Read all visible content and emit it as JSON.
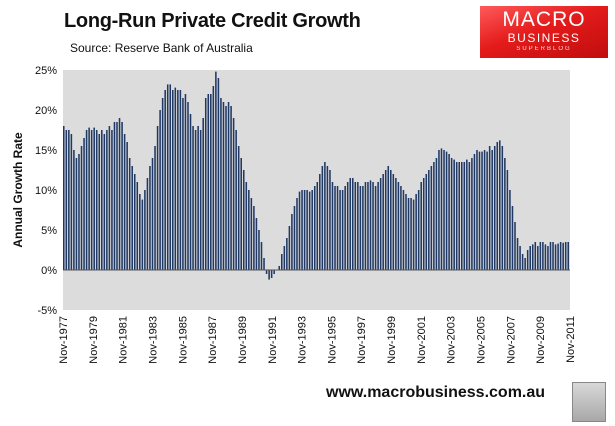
{
  "header": {
    "title": "Long-Run Private Credit Growth",
    "source": "Source: Reserve Bank of Australia"
  },
  "logo": {
    "line1": "MACRO",
    "line2": "BUSINESS",
    "line3": "SUPERBLOG",
    "color": "#e41b1b"
  },
  "footer": {
    "website": "www.macrobusiness.com.au",
    "mascot": "wolf-icon"
  },
  "colors": {
    "bars": "#1f3864",
    "plot_background": "#dcdcdc"
  },
  "chart_data": {
    "type": "bar",
    "title": "Long-Run Private Credit Growth",
    "ylabel": "Annual Growth Rate",
    "xlabel": "",
    "ylim": [
      -5,
      25
    ],
    "yticks": [
      "-5%",
      "0%",
      "5%",
      "10%",
      "15%",
      "20%",
      "25%"
    ],
    "xticks": [
      "Nov-1977",
      "Nov-1979",
      "Nov-1981",
      "Nov-1983",
      "Nov-1985",
      "Nov-1987",
      "Nov-1989",
      "Nov-1991",
      "Nov-1993",
      "Nov-1995",
      "Nov-1997",
      "Nov-1999",
      "Nov-2001",
      "Nov-2003",
      "Nov-2005",
      "Nov-2007",
      "Nov-2009",
      "Nov-2011"
    ],
    "grid": false,
    "legend": "none",
    "series": [
      {
        "values_by_year": {
          "1977": [
            18,
            17.5
          ],
          "1978": [
            17.5,
            17,
            15,
            14,
            14.5,
            15.5
          ],
          "1979": [
            16.5,
            17.5,
            17.8,
            17.5,
            17.8,
            17.5
          ],
          "1980": [
            17,
            17.5,
            17,
            17.5,
            18,
            17.5
          ],
          "1981": [
            18.5,
            18.5,
            19,
            18.5,
            17,
            16
          ],
          "1982": [
            14,
            13,
            12,
            11,
            9.5,
            8.8
          ],
          "1983": [
            10,
            11.5,
            13,
            14,
            15.5,
            18
          ],
          "1984": [
            20,
            21.5,
            22.5,
            23.2,
            23.2,
            22.5
          ],
          "1985": [
            22.8,
            22.5,
            22.5,
            21.5,
            22,
            21
          ],
          "1986": [
            19.5,
            18,
            17.5,
            18,
            17.5,
            19
          ],
          "1987": [
            21.5,
            22,
            22,
            23,
            24.8,
            24
          ],
          "1988": [
            21.5,
            21,
            20.5,
            21,
            20.5,
            19
          ],
          "1989": [
            17.5,
            15.5,
            14,
            12.5,
            11,
            10
          ],
          "1990": [
            9,
            8,
            6.5,
            5,
            3.5,
            1.5
          ],
          "1991": [
            -0.5,
            -1.2,
            -1,
            -0.5,
            0,
            0.5
          ],
          "1992": [
            2,
            3,
            4,
            5.5,
            7,
            8
          ],
          "1993": [
            9,
            9.8,
            10,
            10,
            10,
            9.8
          ],
          "1994": [
            10,
            10.5,
            11,
            12,
            13,
            13.5
          ],
          "1995": [
            13,
            12.5,
            11,
            10.5,
            10.5,
            10
          ],
          "1996": [
            10,
            10.5,
            11,
            11.5,
            11.5,
            11
          ],
          "1997": [
            11,
            10.5,
            10.5,
            11,
            11,
            11.2
          ],
          "1998": [
            11,
            10.5,
            11,
            11.5,
            12,
            12.5
          ],
          "1999": [
            13,
            12.5,
            12,
            11.5,
            11,
            10.5
          ],
          "2000": [
            10,
            9.5,
            9,
            9,
            8.8,
            9.5
          ],
          "2001": [
            10,
            11,
            11.5,
            12,
            12.5,
            13
          ],
          "2002": [
            13.5,
            14,
            15,
            15.2,
            15,
            14.8
          ],
          "2003": [
            14.5,
            14,
            13.8,
            13.5,
            13.5,
            13.5
          ],
          "2004": [
            13.5,
            13.8,
            13.5,
            14,
            14.5,
            15
          ],
          "2005": [
            14.8,
            14.8,
            15,
            14.8,
            15.5,
            15
          ],
          "2006": [
            15.5,
            16,
            16.2,
            15.5,
            14,
            12.5
          ],
          "2007": [
            10,
            8,
            6,
            4,
            3,
            2
          ],
          "2008": [
            1.5,
            2.5,
            3,
            3.2,
            3.5,
            3
          ],
          "2009": [
            3.5,
            3.5,
            3.2,
            3,
            3.5,
            3.5
          ],
          "2010": [
            3.2,
            3.3,
            3.5,
            3.4,
            3.5,
            3.5
          ]
        }
      }
    ]
  }
}
